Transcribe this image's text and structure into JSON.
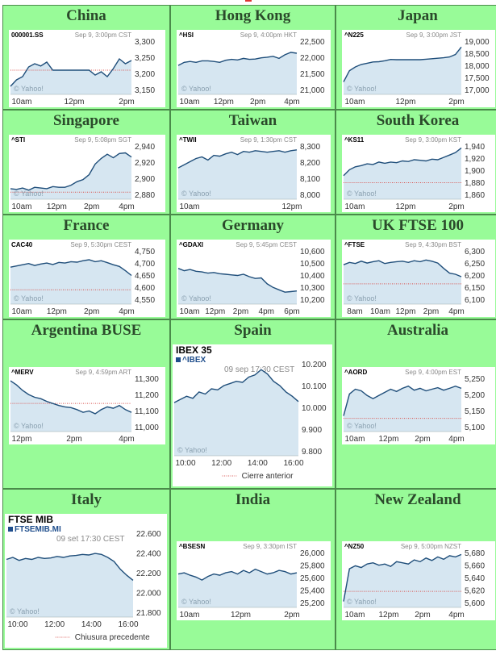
{
  "colors": {
    "cell_bg": "#98fb98",
    "line": "#1f4e7a",
    "fill": "#d6e6f1",
    "prev_close": "#d9534f",
    "title": "#2b4a2b"
  },
  "markets": [
    {
      "title": "China",
      "symbol": "000001.SS",
      "when": "Sep 9, 3:00pm CST",
      "watermark": "© Yahoo!",
      "y_ticks": [
        "3,300",
        "3,250",
        "3,200",
        "3,150"
      ],
      "x_ticks": [
        "10am",
        "12pm",
        "2pm"
      ],
      "prev_close": 3215,
      "chart_data": {
        "type": "area",
        "x": [
          0,
          0.05,
          0.1,
          0.15,
          0.2,
          0.25,
          0.3,
          0.35,
          0.4,
          0.45,
          0.5,
          0.55,
          0.6,
          0.65,
          0.7,
          0.75,
          0.8,
          0.85,
          0.9,
          0.95,
          1.0
        ],
        "y": [
          3165,
          3185,
          3195,
          3225,
          3235,
          3228,
          3240,
          3215,
          3215,
          3215,
          3215,
          3215,
          3215,
          3215,
          3200,
          3210,
          3195,
          3220,
          3250,
          3235,
          3245
        ],
        "ylim": [
          3140,
          3310
        ]
      }
    },
    {
      "title": "Hong Kong",
      "symbol": "^HSI",
      "when": "Sep 9, 4:00pm HKT",
      "watermark": "© Yahoo!",
      "y_ticks": [
        "22,500",
        "22,000",
        "21,500",
        "21,000"
      ],
      "x_ticks": [
        "10am",
        "12pm",
        "2pm",
        "4pm"
      ],
      "prev_close": null,
      "chart_data": {
        "type": "area",
        "x": [
          0,
          0.05,
          0.1,
          0.15,
          0.2,
          0.25,
          0.3,
          0.35,
          0.4,
          0.45,
          0.5,
          0.55,
          0.6,
          0.65,
          0.7,
          0.75,
          0.8,
          0.85,
          0.9,
          0.95,
          1.0
        ],
        "y": [
          21850,
          21950,
          21980,
          21950,
          22000,
          22000,
          21980,
          21950,
          22020,
          22050,
          22030,
          22080,
          22050,
          22060,
          22100,
          22120,
          22150,
          22080,
          22200,
          22280,
          22250
        ],
        "ylim": [
          20900,
          22700
        ]
      }
    },
    {
      "title": "Japan",
      "symbol": "^N225",
      "when": "Sep 9, 3:00pm JST",
      "watermark": "© Yahoo!",
      "y_ticks": [
        "19,000",
        "18,500",
        "18,000",
        "17,500",
        "17,000"
      ],
      "x_ticks": [
        "10am",
        "12pm",
        "2pm"
      ],
      "prev_close": null,
      "chart_data": {
        "type": "area",
        "x": [
          0,
          0.05,
          0.1,
          0.15,
          0.2,
          0.25,
          0.3,
          0.35,
          0.4,
          0.45,
          0.5,
          0.55,
          0.6,
          0.65,
          0.7,
          0.75,
          0.8,
          0.85,
          0.9,
          0.95,
          1.0
        ],
        "y": [
          17450,
          17900,
          18050,
          18150,
          18200,
          18250,
          18260,
          18300,
          18350,
          18340,
          18340,
          18340,
          18340,
          18340,
          18360,
          18380,
          18400,
          18420,
          18450,
          18550,
          18850
        ],
        "ylim": [
          16950,
          19150
        ]
      }
    },
    {
      "title": "Singapore",
      "symbol": "^STI",
      "when": "Sep 9, 5:08pm SGT",
      "watermark": "© Yahoo!",
      "y_ticks": [
        "2,940",
        "2,920",
        "2,900",
        "2,880"
      ],
      "x_ticks": [
        "10am",
        "12pm",
        "2pm",
        "4pm"
      ],
      "prev_close": 2880,
      "chart_data": {
        "type": "area",
        "x": [
          0,
          0.05,
          0.1,
          0.15,
          0.2,
          0.25,
          0.3,
          0.35,
          0.4,
          0.45,
          0.5,
          0.55,
          0.6,
          0.65,
          0.7,
          0.75,
          0.8,
          0.85,
          0.9,
          0.95,
          1.0
        ],
        "y": [
          2885,
          2884,
          2886,
          2883,
          2887,
          2886,
          2885,
          2888,
          2887,
          2887,
          2890,
          2895,
          2898,
          2905,
          2920,
          2928,
          2934,
          2929,
          2935,
          2936,
          2930
        ],
        "ylim": [
          2870,
          2948
        ]
      }
    },
    {
      "title": "Taiwan",
      "symbol": "^TWII",
      "when": "Sep 9, 1:30pm CST",
      "watermark": "© Yahoo!",
      "y_ticks": [
        "8,300",
        "8,200",
        "8,100",
        "8,000"
      ],
      "x_ticks": [
        "10am",
        "12pm"
      ],
      "prev_close": null,
      "chart_data": {
        "type": "area",
        "x": [
          0,
          0.05,
          0.1,
          0.15,
          0.2,
          0.25,
          0.3,
          0.35,
          0.4,
          0.45,
          0.5,
          0.55,
          0.6,
          0.65,
          0.7,
          0.75,
          0.8,
          0.85,
          0.9,
          0.95,
          1.0
        ],
        "y": [
          8180,
          8200,
          8220,
          8240,
          8250,
          8230,
          8260,
          8255,
          8270,
          8280,
          8265,
          8285,
          8280,
          8290,
          8285,
          8280,
          8285,
          8290,
          8280,
          8290,
          8295
        ],
        "ylim": [
          7980,
          8330
        ]
      }
    },
    {
      "title": "South Korea",
      "symbol": "^KS11",
      "when": "Sep 9, 3:00pm KST",
      "watermark": "© Yahoo!",
      "y_ticks": [
        "1,940",
        "1,920",
        "1,900",
        "1,880",
        "1,860"
      ],
      "x_ticks": [
        "10am",
        "12pm",
        "2pm"
      ],
      "prev_close": 1883,
      "chart_data": {
        "type": "area",
        "x": [
          0,
          0.05,
          0.1,
          0.15,
          0.2,
          0.25,
          0.3,
          0.35,
          0.4,
          0.45,
          0.5,
          0.55,
          0.6,
          0.65,
          0.7,
          0.75,
          0.8,
          0.85,
          0.9,
          0.95,
          1.0
        ],
        "y": [
          1895,
          1905,
          1910,
          1912,
          1915,
          1914,
          1918,
          1916,
          1918,
          1917,
          1920,
          1919,
          1922,
          1921,
          1920,
          1923,
          1922,
          1926,
          1930,
          1934,
          1942
        ],
        "ylim": [
          1855,
          1948
        ]
      }
    },
    {
      "title": "France",
      "symbol": "CAC40",
      "when": "Sep 9, 5:30pm CEST",
      "watermark": "© Yahoo!",
      "y_ticks": [
        "4,750",
        "4,700",
        "4,650",
        "4,600",
        "4,550"
      ],
      "x_ticks": [
        "10am",
        "12pm",
        "2pm",
        "4pm"
      ],
      "prev_close": 4600,
      "chart_data": {
        "type": "area",
        "x": [
          0,
          0.05,
          0.1,
          0.15,
          0.2,
          0.25,
          0.3,
          0.35,
          0.4,
          0.45,
          0.5,
          0.55,
          0.6,
          0.65,
          0.7,
          0.75,
          0.8,
          0.85,
          0.9,
          0.95,
          1.0
        ],
        "y": [
          4695,
          4700,
          4705,
          4710,
          4702,
          4708,
          4712,
          4706,
          4715,
          4712,
          4718,
          4716,
          4722,
          4726,
          4718,
          4722,
          4714,
          4705,
          4698,
          4680,
          4660
        ],
        "ylim": [
          4540,
          4770
        ]
      }
    },
    {
      "title": "Germany",
      "symbol": "^GDAXI",
      "when": "Sep 9, 5:45pm CEST",
      "watermark": "© Yahoo!",
      "y_ticks": [
        "10,600",
        "10,500",
        "10,400",
        "10,300",
        "10,200"
      ],
      "x_ticks": [
        "10am",
        "12pm",
        "2pm",
        "4pm",
        "6pm"
      ],
      "prev_close": null,
      "chart_data": {
        "type": "area",
        "x": [
          0,
          0.05,
          0.1,
          0.15,
          0.2,
          0.25,
          0.3,
          0.35,
          0.4,
          0.45,
          0.5,
          0.55,
          0.6,
          0.65,
          0.7,
          0.75,
          0.8,
          0.85,
          0.9,
          0.95,
          1.0
        ],
        "y": [
          10480,
          10460,
          10470,
          10455,
          10450,
          10440,
          10445,
          10435,
          10430,
          10425,
          10420,
          10430,
          10410,
          10395,
          10400,
          10350,
          10320,
          10300,
          10280,
          10285,
          10290
        ],
        "ylim": [
          10180,
          10640
        ]
      }
    },
    {
      "title": "UK FTSE 100",
      "symbol": "^FTSE",
      "when": "Sep 9, 4:30pm BST",
      "watermark": "© Yahoo!",
      "y_ticks": [
        "6,300",
        "6,250",
        "6,200",
        "6,150",
        "6,100"
      ],
      "x_ticks": [
        "8am",
        "10am",
        "12pm",
        "2pm",
        "4pm"
      ],
      "prev_close": 6175,
      "chart_data": {
        "type": "area",
        "x": [
          0,
          0.05,
          0.1,
          0.15,
          0.2,
          0.25,
          0.3,
          0.35,
          0.4,
          0.45,
          0.5,
          0.55,
          0.6,
          0.65,
          0.7,
          0.75,
          0.8,
          0.85,
          0.9,
          0.95,
          1.0
        ],
        "y": [
          6255,
          6265,
          6260,
          6270,
          6262,
          6268,
          6272,
          6260,
          6265,
          6268,
          6270,
          6265,
          6272,
          6268,
          6275,
          6270,
          6262,
          6240,
          6220,
          6215,
          6205
        ],
        "ylim": [
          6090,
          6320
        ]
      }
    },
    {
      "title": "Argentina BUSE",
      "symbol": "^MERV",
      "when": "Sep 9, 4:59pm ART",
      "watermark": "© Yahoo!",
      "y_ticks": [
        "11,300",
        "11,200",
        "11,100",
        "11,000"
      ],
      "x_ticks": [
        "12pm",
        "2pm",
        "4pm"
      ],
      "prev_close": 11165,
      "chart_data": {
        "type": "area",
        "x": [
          0,
          0.05,
          0.1,
          0.15,
          0.2,
          0.25,
          0.3,
          0.35,
          0.4,
          0.45,
          0.5,
          0.55,
          0.6,
          0.65,
          0.7,
          0.75,
          0.8,
          0.85,
          0.9,
          0.95,
          1.0
        ],
        "y": [
          11330,
          11300,
          11260,
          11230,
          11210,
          11200,
          11180,
          11165,
          11150,
          11140,
          11135,
          11120,
          11100,
          11110,
          11090,
          11120,
          11140,
          11130,
          11150,
          11120,
          11100
        ],
        "ylim": [
          10960,
          11360
        ]
      }
    },
    {
      "title": "Spain",
      "symbol": "IBEX 35",
      "subtitle": "^IBEX",
      "when": "09 sep 17:30 CEST",
      "watermark": "© Yahoo!",
      "y_ticks": [
        "10.200",
        "10.100",
        "10.000",
        "9.900",
        "9.800"
      ],
      "x_ticks": [
        "10:00",
        "12:00",
        "14:00",
        "16:00"
      ],
      "legend": "Cierre anterior",
      "prev_close": null,
      "chart_data": {
        "type": "area",
        "x": [
          0,
          0.05,
          0.1,
          0.15,
          0.2,
          0.25,
          0.3,
          0.35,
          0.4,
          0.45,
          0.5,
          0.55,
          0.6,
          0.65,
          0.7,
          0.75,
          0.8,
          0.85,
          0.9,
          0.95,
          1.0
        ],
        "y": [
          10030,
          10045,
          10060,
          10050,
          10080,
          10070,
          10095,
          10090,
          10110,
          10120,
          10130,
          10125,
          10150,
          10160,
          10185,
          10165,
          10130,
          10110,
          10080,
          10060,
          10035
        ],
        "ylim": [
          9780,
          10220
        ]
      }
    },
    {
      "title": "Australia",
      "symbol": "^AORD",
      "when": "Sep 9, 4:00pm EST",
      "watermark": "© Yahoo!",
      "y_ticks": [
        "5,250",
        "5,200",
        "5,150",
        "5,100"
      ],
      "x_ticks": [
        "10am",
        "12pm",
        "2pm",
        "4pm"
      ],
      "prev_close": 5132,
      "chart_data": {
        "type": "area",
        "x": [
          0,
          0.05,
          0.1,
          0.15,
          0.2,
          0.25,
          0.3,
          0.35,
          0.4,
          0.45,
          0.5,
          0.55,
          0.6,
          0.65,
          0.7,
          0.75,
          0.8,
          0.85,
          0.9,
          0.95,
          1.0
        ],
        "y": [
          5140,
          5210,
          5225,
          5220,
          5205,
          5195,
          5205,
          5215,
          5225,
          5218,
          5228,
          5235,
          5222,
          5228,
          5220,
          5225,
          5230,
          5222,
          5228,
          5235,
          5228
        ],
        "ylim": [
          5090,
          5265
        ]
      }
    },
    {
      "title": "Italy",
      "symbol": "FTSE MIB",
      "subtitle": "FTSEMIB.MI",
      "when": "09 set 17:30 CEST",
      "watermark": "© Yahoo!",
      "y_ticks": [
        "22.600",
        "22.400",
        "22.200",
        "22.000",
        "21.800"
      ],
      "x_ticks": [
        "10:00",
        "12:00",
        "14:00",
        "16:00"
      ],
      "legend": "Chiusura precedente",
      "prev_close": null,
      "chart_data": {
        "type": "area",
        "x": [
          0,
          0.05,
          0.1,
          0.15,
          0.2,
          0.25,
          0.3,
          0.35,
          0.4,
          0.45,
          0.5,
          0.55,
          0.6,
          0.65,
          0.7,
          0.75,
          0.8,
          0.85,
          0.9,
          0.95,
          1.0
        ],
        "y": [
          22360,
          22380,
          22350,
          22370,
          22360,
          22380,
          22370,
          22375,
          22390,
          22380,
          22395,
          22400,
          22410,
          22405,
          22420,
          22410,
          22380,
          22340,
          22260,
          22200,
          22150
        ],
        "ylim": [
          21780,
          22640
        ]
      }
    },
    {
      "title": "India",
      "symbol": "^BSESN",
      "when": "Sep 9, 3:30pm IST",
      "watermark": "© Yahoo!",
      "y_ticks": [
        "26,000",
        "25,800",
        "25,600",
        "25,400",
        "25,200"
      ],
      "x_ticks": [
        "10am",
        "12pm",
        "2pm"
      ],
      "prev_close": null,
      "chart_data": {
        "type": "area",
        "x": [
          0,
          0.05,
          0.1,
          0.15,
          0.2,
          0.25,
          0.3,
          0.35,
          0.4,
          0.45,
          0.5,
          0.55,
          0.6,
          0.65,
          0.7,
          0.75,
          0.8,
          0.85,
          0.9,
          0.95,
          1.0
        ],
        "y": [
          25700,
          25720,
          25680,
          25650,
          25600,
          25660,
          25700,
          25680,
          25720,
          25740,
          25700,
          25760,
          25720,
          25780,
          25740,
          25700,
          25720,
          25760,
          25740,
          25700,
          25720
        ],
        "ylim": [
          25150,
          26080
        ]
      }
    },
    {
      "title": "New Zealand",
      "symbol": "^NZ50",
      "when": "Sep 9, 5:00pm NZST",
      "watermark": "© Yahoo!",
      "y_ticks": [
        "5,680",
        "5,660",
        "5,640",
        "5,620",
        "5,600"
      ],
      "x_ticks": [
        "10am",
        "12pm",
        "2pm",
        "4pm"
      ],
      "prev_close": 5622,
      "chart_data": {
        "type": "area",
        "x": [
          0,
          0.05,
          0.1,
          0.15,
          0.2,
          0.25,
          0.3,
          0.35,
          0.4,
          0.45,
          0.5,
          0.55,
          0.6,
          0.65,
          0.7,
          0.75,
          0.8,
          0.85,
          0.9,
          0.95,
          1.0
        ],
        "y": [
          5605,
          5660,
          5665,
          5662,
          5668,
          5670,
          5666,
          5668,
          5664,
          5672,
          5670,
          5668,
          5675,
          5672,
          5678,
          5674,
          5680,
          5676,
          5682,
          5680,
          5684
        ],
        "ylim": [
          5595,
          5690
        ]
      }
    }
  ]
}
